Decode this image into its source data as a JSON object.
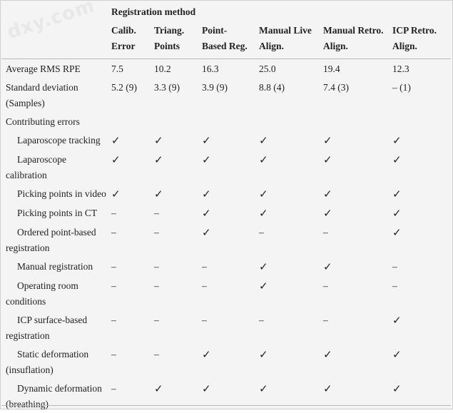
{
  "watermark": "dxy.com",
  "header": {
    "group_label": "Registration method",
    "columns": [
      [
        "Calib.",
        "Error"
      ],
      [
        "Triang.",
        "Points"
      ],
      [
        "Point-",
        "Based Reg."
      ],
      [
        "Manual Live",
        "Align."
      ],
      [
        "Manual Retro.",
        "Align."
      ],
      [
        "ICP Retro.",
        "Align."
      ]
    ]
  },
  "rows": [
    {
      "label": [
        "Average RMS RPE"
      ],
      "indent": false,
      "cells": [
        "7.5",
        "10.2",
        "16.3",
        "25.0",
        "19.4",
        "12.3"
      ]
    },
    {
      "label": [
        "Standard deviation",
        "(Samples)"
      ],
      "indent": false,
      "cells": [
        "5.2 (9)",
        "3.3 (9)",
        "3.9 (9)",
        "8.8 (4)",
        "7.4 (3)",
        "– (1)"
      ]
    },
    {
      "label": [
        "Contributing errors"
      ],
      "indent": false,
      "cells": [
        "",
        "",
        "",
        "",
        "",
        ""
      ]
    },
    {
      "label": [
        "Laparoscope tracking"
      ],
      "indent": true,
      "cells": [
        "✓",
        "✓",
        "✓",
        "✓",
        "✓",
        "✓"
      ]
    },
    {
      "label": [
        "Laparoscope",
        "calibration"
      ],
      "indent": true,
      "cells": [
        "✓",
        "✓",
        "✓",
        "✓",
        "✓",
        "✓"
      ]
    },
    {
      "label": [
        "Picking points in video"
      ],
      "indent": true,
      "cells": [
        "✓",
        "✓",
        "✓",
        "✓",
        "✓",
        "✓"
      ]
    },
    {
      "label": [
        "Picking points in CT"
      ],
      "indent": true,
      "cells": [
        "–",
        "–",
        "✓",
        "✓",
        "✓",
        "✓"
      ]
    },
    {
      "label": [
        "Ordered point-based",
        "registration"
      ],
      "indent": true,
      "cells": [
        "–",
        "–",
        "✓",
        "–",
        "–",
        "✓"
      ]
    },
    {
      "label": [
        "Manual registration"
      ],
      "indent": true,
      "cells": [
        "–",
        "–",
        "–",
        "✓",
        "✓",
        "–"
      ]
    },
    {
      "label": [
        "Operating room",
        "conditions"
      ],
      "indent": true,
      "cells": [
        "–",
        "–",
        "–",
        "✓",
        "–",
        "–"
      ]
    },
    {
      "label": [
        "ICP surface-based",
        "registration"
      ],
      "indent": true,
      "cells": [
        "–",
        "–",
        "–",
        "–",
        "–",
        "✓"
      ]
    },
    {
      "label": [
        "Static deformation",
        "(insuflation)"
      ],
      "indent": true,
      "cells": [
        "–",
        "–",
        "✓",
        "✓",
        "✓",
        "✓"
      ]
    },
    {
      "label": [
        "Dynamic deformation",
        "(breathing)"
      ],
      "indent": true,
      "cells": [
        "–",
        "✓",
        "✓",
        "✓",
        "✓",
        "✓"
      ]
    }
  ]
}
